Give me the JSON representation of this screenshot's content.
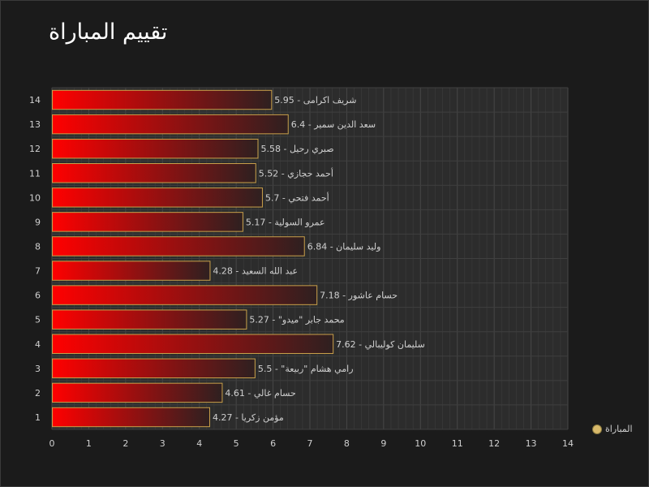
{
  "chart_data": {
    "type": "bar",
    "orientation": "horizontal",
    "title": "تقييم المباراة",
    "categories": [
      "1",
      "2",
      "3",
      "4",
      "5",
      "6",
      "7",
      "8",
      "9",
      "10",
      "11",
      "12",
      "13",
      "14"
    ],
    "series": [
      {
        "name": "المباراة",
        "values": [
          4.27,
          4.61,
          5.5,
          7.62,
          5.27,
          7.18,
          4.28,
          6.84,
          5.17,
          5.7,
          5.52,
          5.58,
          6.4,
          5.95
        ],
        "labels": [
          "مؤمن زكريا - 4.27",
          "حسام غالي - 4.61",
          "رامي هشام \"ربيعة\" - 5.5",
          "سليمان كوليبالي - 7.62",
          "محمد جابر \"ميدو\" - 5.27",
          "حسام عاشور - 7.18",
          "عبد الله السعيد - 4.28",
          "وليد سليمان - 6.84",
          "عمرو السولية - 5.17",
          "أحمد فتحي - 5.7",
          "أحمد حجازي - 5.52",
          "صبري رحيل - 5.58",
          "سعد الدين سمير - 6.4",
          "شريف اكرامى - 5.95"
        ]
      }
    ],
    "xlim": [
      0,
      14
    ],
    "xticks": [
      "0",
      "1",
      "2",
      "3",
      "4",
      "5",
      "6",
      "7",
      "8",
      "9",
      "10",
      "11",
      "12",
      "13",
      "14"
    ],
    "grid": true,
    "legend_position": "bottom-right",
    "colors": {
      "background": "#1b1b1b",
      "plot_background": "#2c2c2c",
      "grid": "#3d3d3d",
      "bar_start": "#ff0000",
      "bar_end": "#2e2020",
      "bar_border": "#c9a04a",
      "text": "#d0d0d0"
    }
  }
}
